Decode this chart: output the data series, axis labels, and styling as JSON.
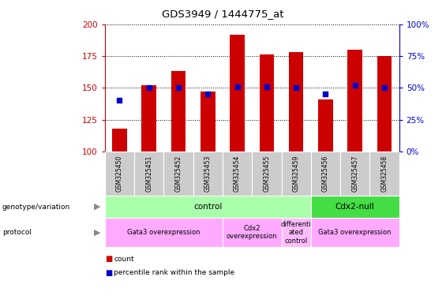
{
  "title": "GDS3949 / 1444775_at",
  "samples": [
    "GSM325450",
    "GSM325451",
    "GSM325452",
    "GSM325453",
    "GSM325454",
    "GSM325455",
    "GSM325459",
    "GSM325456",
    "GSM325457",
    "GSM325458"
  ],
  "counts": [
    118,
    152,
    163,
    147,
    192,
    176,
    178,
    141,
    180,
    175
  ],
  "percentile_ranks": [
    40,
    50,
    50,
    45,
    51,
    51,
    50,
    45,
    52,
    50
  ],
  "ylim_left": [
    100,
    200
  ],
  "ylim_right": [
    0,
    100
  ],
  "yticks_left": [
    100,
    125,
    150,
    175,
    200
  ],
  "yticks_right": [
    0,
    25,
    50,
    75,
    100
  ],
  "bar_color": "#cc0000",
  "dot_color": "#0000cc",
  "genotype_groups": [
    {
      "label": "control",
      "start": 0,
      "end": 7,
      "color": "#aaffaa"
    },
    {
      "label": "Cdx2-null",
      "start": 7,
      "end": 10,
      "color": "#44dd44"
    }
  ],
  "protocol_groups": [
    {
      "label": "Gata3 overexpression",
      "start": 0,
      "end": 4,
      "color": "#ffaaff"
    },
    {
      "label": "Cdx2\noverexpression",
      "start": 4,
      "end": 6,
      "color": "#ffaaff"
    },
    {
      "label": "differenti\nated\ncontrol",
      "start": 6,
      "end": 7,
      "color": "#ffbbff"
    },
    {
      "label": "Gata3 overexpression",
      "start": 7,
      "end": 10,
      "color": "#ffaaff"
    }
  ],
  "sample_cell_color": "#cccccc",
  "left_label_color": "#cc0000",
  "right_label_color": "#0000cc",
  "legend_items": [
    {
      "label": "count",
      "color": "#cc0000"
    },
    {
      "label": "percentile rank within the sample",
      "color": "#0000cc"
    }
  ]
}
